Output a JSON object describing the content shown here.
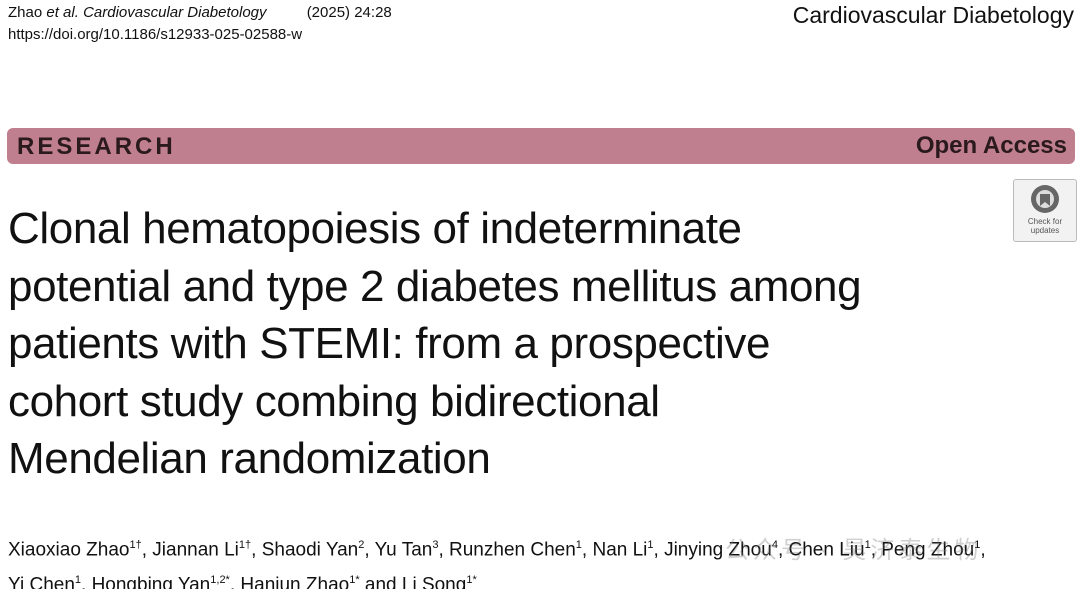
{
  "header": {
    "citation_author": "Zhao",
    "citation_etal": "et al.",
    "citation_journal": "Cardiovascular Diabetology",
    "citation_issue": "(2025) 24:28",
    "doi": "https://doi.org/10.1186/s12933-025-02588-w",
    "journal": "Cardiovascular Diabetology"
  },
  "banner": {
    "article_type": "RESEARCH",
    "access": "Open Access"
  },
  "badge": {
    "lines": [
      "Check for",
      "updates"
    ]
  },
  "title": {
    "lines": [
      "Clonal hematopoiesis of indeterminate",
      "potential and type 2 diabetes mellitus among",
      "patients with STEMI: from a prospective",
      "cohort study combing bidirectional",
      "Mendelian randomization"
    ]
  },
  "authors": {
    "lines": [
      [
        {
          "name": "Xiaoxiao Zhao",
          "sup": "1†",
          "sep": ", "
        },
        {
          "name": "Jiannan Li",
          "sup": "1†",
          "sep": ", "
        },
        {
          "name": "Shaodi Yan",
          "sup": "2",
          "sep": ", "
        },
        {
          "name": "Yu Tan",
          "sup": "3",
          "sep": ", "
        },
        {
          "name": "Runzhen Chen",
          "sup": "1",
          "sep": ", "
        },
        {
          "name": "Nan Li",
          "sup": "1",
          "sep": ", "
        },
        {
          "name": "Jinying Zhou",
          "sup": "4",
          "sep": ", "
        },
        {
          "name": "Chen Liu",
          "sup": "1",
          "sep": ", "
        },
        {
          "name": "Peng Zhou",
          "sup": "1",
          "sep": ","
        }
      ],
      [
        {
          "name": "Yi Chen",
          "sup": "1",
          "sep": ", "
        },
        {
          "name": "Hongbing Yan",
          "sup": "1,2*",
          "sep": ", "
        },
        {
          "name": "Hanjun Zhao",
          "sup": "1*",
          "sep": " and "
        },
        {
          "name": "Li Song",
          "sup": "1*"
        }
      ]
    ]
  },
  "watermark": "公众号 · 昊济泰生物"
}
